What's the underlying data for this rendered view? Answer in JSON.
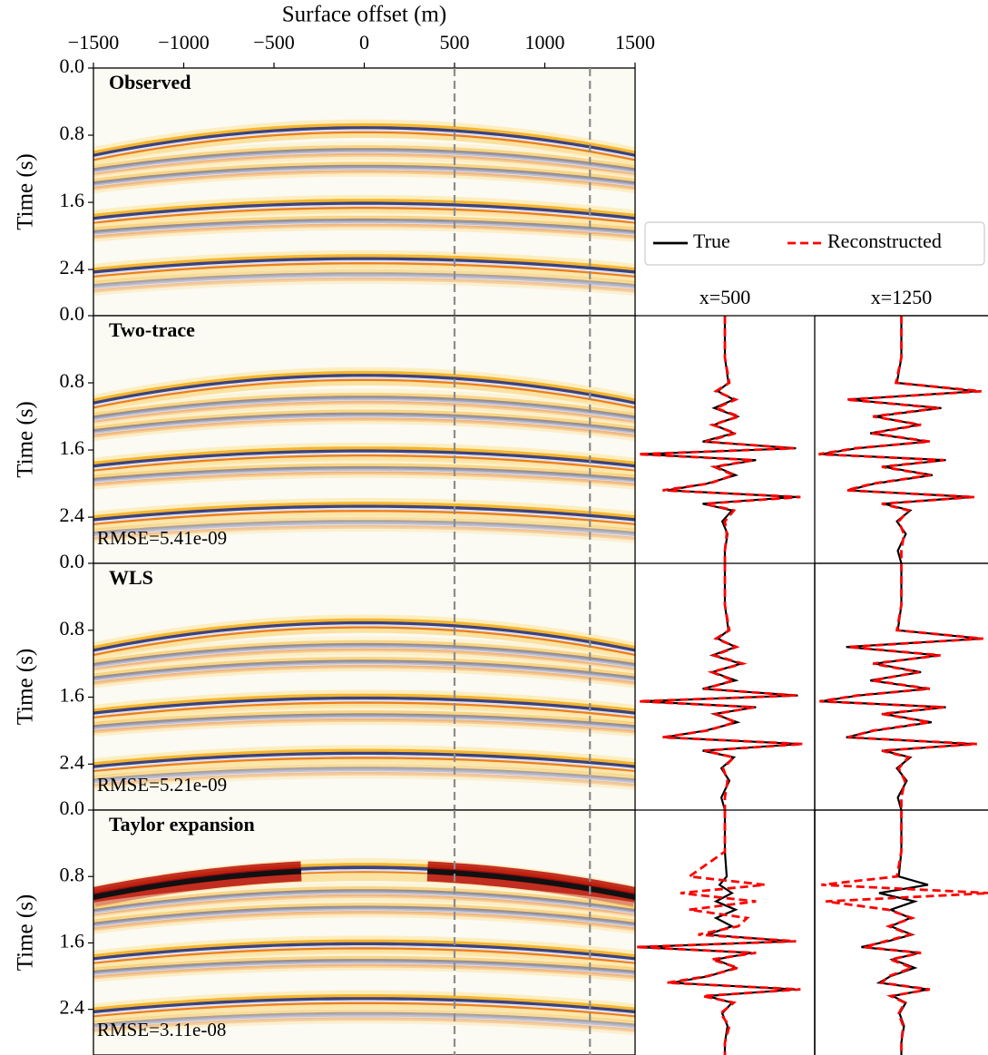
{
  "chart_data": [
    {
      "type": "image",
      "title": "Observed",
      "xlabel": "Surface offset (m)",
      "ylabel": "Time (s)",
      "xlim": [
        -1500,
        1500
      ],
      "xticks": [
        {
          "value": -1500,
          "label": "−1500"
        },
        {
          "value": -1000,
          "label": "−1000"
        },
        {
          "value": -500,
          "label": "−500"
        },
        0,
        500,
        1000,
        1500
      ],
      "ylim": [
        0,
        2.95
      ],
      "yticks": [
        {
          "value": 0,
          "label": "0.0"
        },
        0.8,
        1.6,
        2.4
      ],
      "vlines": [
        500,
        1250
      ]
    },
    {
      "type": "image",
      "title": "Two-trace",
      "ylabel": "Time (s)",
      "annotation": "RMSE=5.41e-09",
      "xlim": [
        -1500,
        1500
      ],
      "ylim": [
        0,
        2.95
      ],
      "yticks": [
        {
          "value": 0,
          "label": "0.0"
        },
        0.8,
        1.6,
        2.4
      ],
      "vlines": [
        500,
        1250
      ]
    },
    {
      "type": "image",
      "title": "WLS",
      "ylabel": "Time (s)",
      "annotation": "RMSE=5.21e-09",
      "xlim": [
        -1500,
        1500
      ],
      "ylim": [
        0,
        2.95
      ],
      "yticks": [
        {
          "value": 0,
          "label": "0.0"
        },
        0.8,
        1.6,
        2.4
      ],
      "vlines": [
        500,
        1250
      ]
    },
    {
      "type": "image",
      "title": "Taylor expansion",
      "ylabel": "Time (s)",
      "annotation": "RMSE=3.11e-08",
      "xlim": [
        -1500,
        1500
      ],
      "ylim": [
        0,
        2.95
      ],
      "yticks": [
        {
          "value": 0,
          "label": "0.0"
        },
        0.8,
        1.6,
        2.4
      ],
      "vlines": [
        500,
        1250
      ]
    },
    {
      "type": "trace",
      "title": "x=500",
      "legend": true,
      "xlim": [
        -1,
        1
      ],
      "ylim": [
        0,
        2.95
      ],
      "y": [
        0,
        0.5,
        0.8,
        0.9,
        1.0,
        1.1,
        1.2,
        1.3,
        1.4,
        1.5,
        1.58,
        1.65,
        1.72,
        1.8,
        1.9,
        2.0,
        2.08,
        2.16,
        2.24,
        2.32,
        2.45,
        2.6,
        2.8,
        2.95
      ],
      "series": [
        {
          "name": "True",
          "color": "#000000",
          "values": [
            0,
            0,
            0.04,
            -0.08,
            0.1,
            -0.12,
            0.14,
            -0.12,
            0.1,
            -0.25,
            0.8,
            -0.95,
            0.35,
            -0.1,
            0.12,
            -0.2,
            -0.65,
            0.8,
            -0.25,
            0.08,
            -0.03,
            0.03,
            0,
            0
          ]
        },
        {
          "name": "Reconstructed",
          "color": "#ff0000",
          "values": [
            0,
            0,
            0.05,
            -0.1,
            0.12,
            -0.1,
            0.16,
            -0.14,
            0.12,
            -0.22,
            0.78,
            -0.98,
            0.32,
            -0.12,
            0.1,
            -0.18,
            -0.7,
            0.85,
            -0.22,
            0.1,
            0,
            0.02,
            0,
            0
          ]
        }
      ]
    },
    {
      "type": "trace",
      "title": "x=1250",
      "xlim": [
        -1,
        1
      ],
      "ylim": [
        0,
        2.95
      ],
      "y": [
        0,
        0.5,
        0.8,
        0.9,
        1.0,
        1.1,
        1.2,
        1.3,
        1.4,
        1.5,
        1.58,
        1.65,
        1.72,
        1.8,
        1.9,
        2.0,
        2.08,
        2.16,
        2.24,
        2.32,
        2.45,
        2.6,
        2.8,
        2.95
      ],
      "series": [
        {
          "name": "True",
          "color": "#000000",
          "values": [
            0,
            0,
            -0.05,
            0.85,
            -0.6,
            0.45,
            -0.3,
            0.2,
            -0.35,
            0.3,
            -0.5,
            -0.9,
            0.5,
            -0.2,
            0.35,
            -0.3,
            -0.6,
            0.8,
            -0.2,
            0.1,
            -0.05,
            0.05,
            -0.04,
            0
          ]
        },
        {
          "name": "Reconstructed",
          "color": "#ff0000",
          "values": [
            0,
            0,
            -0.06,
            0.9,
            -0.62,
            0.42,
            -0.32,
            0.22,
            -0.33,
            0.32,
            -0.52,
            -0.93,
            0.48,
            -0.22,
            0.33,
            -0.32,
            -0.62,
            0.82,
            -0.22,
            0.08,
            -0.03,
            0.03,
            0,
            0
          ]
        }
      ]
    },
    {
      "type": "trace",
      "xlim": [
        -1,
        1
      ],
      "ylim": [
        0,
        2.95
      ],
      "y": [
        0,
        0.5,
        0.8,
        0.9,
        1.0,
        1.1,
        1.2,
        1.3,
        1.4,
        1.5,
        1.58,
        1.65,
        1.72,
        1.8,
        1.9,
        2.0,
        2.08,
        2.16,
        2.24,
        2.32,
        2.45,
        2.6,
        2.8,
        2.95
      ],
      "series": [
        {
          "name": "True",
          "color": "#000000",
          "values": [
            0,
            0,
            0.04,
            -0.08,
            0.12,
            -0.14,
            0.18,
            -0.14,
            0.12,
            -0.25,
            0.82,
            -0.95,
            0.35,
            -0.12,
            0.14,
            -0.22,
            -0.68,
            0.85,
            -0.25,
            0.1,
            -0.04,
            0.05,
            -0.04,
            0
          ]
        },
        {
          "name": "Reconstructed",
          "color": "#ff0000",
          "values": [
            0,
            0,
            0.05,
            -0.1,
            0.13,
            -0.12,
            0.2,
            -0.15,
            0.1,
            -0.23,
            0.8,
            -0.97,
            0.33,
            -0.1,
            0.12,
            -0.2,
            -0.7,
            0.88,
            -0.23,
            0.1,
            -0.02,
            0.03,
            0,
            0
          ]
        }
      ]
    },
    {
      "type": "trace",
      "xlim": [
        -1,
        1
      ],
      "ylim": [
        0,
        2.95
      ],
      "y": [
        0,
        0.5,
        0.8,
        0.9,
        1.0,
        1.1,
        1.2,
        1.3,
        1.4,
        1.5,
        1.58,
        1.65,
        1.72,
        1.8,
        1.9,
        2.0,
        2.08,
        2.16,
        2.24,
        2.32,
        2.45,
        2.6,
        2.8,
        2.95
      ],
      "series": [
        {
          "name": "True",
          "color": "#000000",
          "values": [
            0,
            0,
            -0.04,
            0.9,
            -0.62,
            0.42,
            -0.3,
            0.22,
            -0.35,
            0.3,
            -0.48,
            -0.9,
            0.5,
            -0.2,
            0.34,
            -0.3,
            -0.62,
            0.82,
            -0.2,
            0.1,
            -0.05,
            0.06,
            -0.04,
            0
          ]
        },
        {
          "name": "Reconstructed",
          "color": "#ff0000",
          "values": [
            0,
            0,
            -0.05,
            0.92,
            -0.6,
            0.44,
            -0.32,
            0.2,
            -0.33,
            0.32,
            -0.5,
            -0.92,
            0.48,
            -0.22,
            0.32,
            -0.32,
            -0.6,
            0.85,
            -0.22,
            0.08,
            -0.03,
            0.04,
            0,
            0
          ]
        }
      ]
    },
    {
      "type": "trace",
      "xlim": [
        -1,
        1
      ],
      "ylim": [
        0,
        2.95
      ],
      "y": [
        0,
        0.5,
        0.8,
        0.9,
        1.0,
        1.1,
        1.2,
        1.3,
        1.4,
        1.5,
        1.58,
        1.65,
        1.72,
        1.8,
        1.9,
        2.0,
        2.08,
        2.16,
        2.24,
        2.32,
        2.45,
        2.6,
        2.8,
        2.95
      ],
      "series": [
        {
          "name": "True",
          "color": "#000000",
          "values": [
            0,
            0,
            0.02,
            -0.06,
            0.08,
            -0.1,
            0.12,
            -0.1,
            0.08,
            -0.2,
            0.75,
            -0.98,
            0.3,
            -0.1,
            0.12,
            -0.18,
            -0.6,
            0.8,
            -0.2,
            0.08,
            -0.03,
            0.03,
            0,
            0
          ]
        },
        {
          "name": "Reconstructed",
          "color": "#ff0000",
          "values": [
            0,
            0,
            -0.4,
            0.45,
            -0.5,
            0.35,
            -0.4,
            0.25,
            0.15,
            -0.3,
            0.8,
            -1.0,
            0.35,
            -0.15,
            0.15,
            -0.2,
            -0.65,
            0.85,
            -0.25,
            0.1,
            -0.05,
            0.05,
            0,
            0
          ]
        }
      ]
    },
    {
      "type": "trace",
      "xlim": [
        -1,
        1
      ],
      "ylim": [
        0,
        2.95
      ],
      "y": [
        0,
        0.5,
        0.8,
        0.9,
        1.0,
        1.1,
        1.2,
        1.3,
        1.4,
        1.5,
        1.58,
        1.65,
        1.72,
        1.8,
        1.9,
        2.0,
        2.08,
        2.16,
        2.24,
        2.32,
        2.45,
        2.6,
        2.8,
        2.95
      ],
      "series": [
        {
          "name": "True",
          "color": "#000000",
          "values": [
            0,
            0,
            -0.03,
            0.3,
            -0.25,
            0.15,
            -0.12,
            0.1,
            -0.12,
            0.12,
            -0.15,
            -0.45,
            0.2,
            -0.1,
            0.15,
            -0.12,
            -0.25,
            0.3,
            -0.1,
            0.05,
            -0.02,
            0.03,
            0,
            0
          ]
        },
        {
          "name": "Reconstructed",
          "color": "#ff0000",
          "values": [
            0,
            0,
            -0.05,
            -0.9,
            1.0,
            -0.85,
            -0.15,
            0.12,
            -0.14,
            0.1,
            -0.18,
            -0.42,
            0.22,
            -0.12,
            0.12,
            -0.14,
            -0.22,
            0.32,
            -0.12,
            0.04,
            -0.03,
            0.02,
            0,
            0
          ]
        }
      ]
    }
  ]
}
